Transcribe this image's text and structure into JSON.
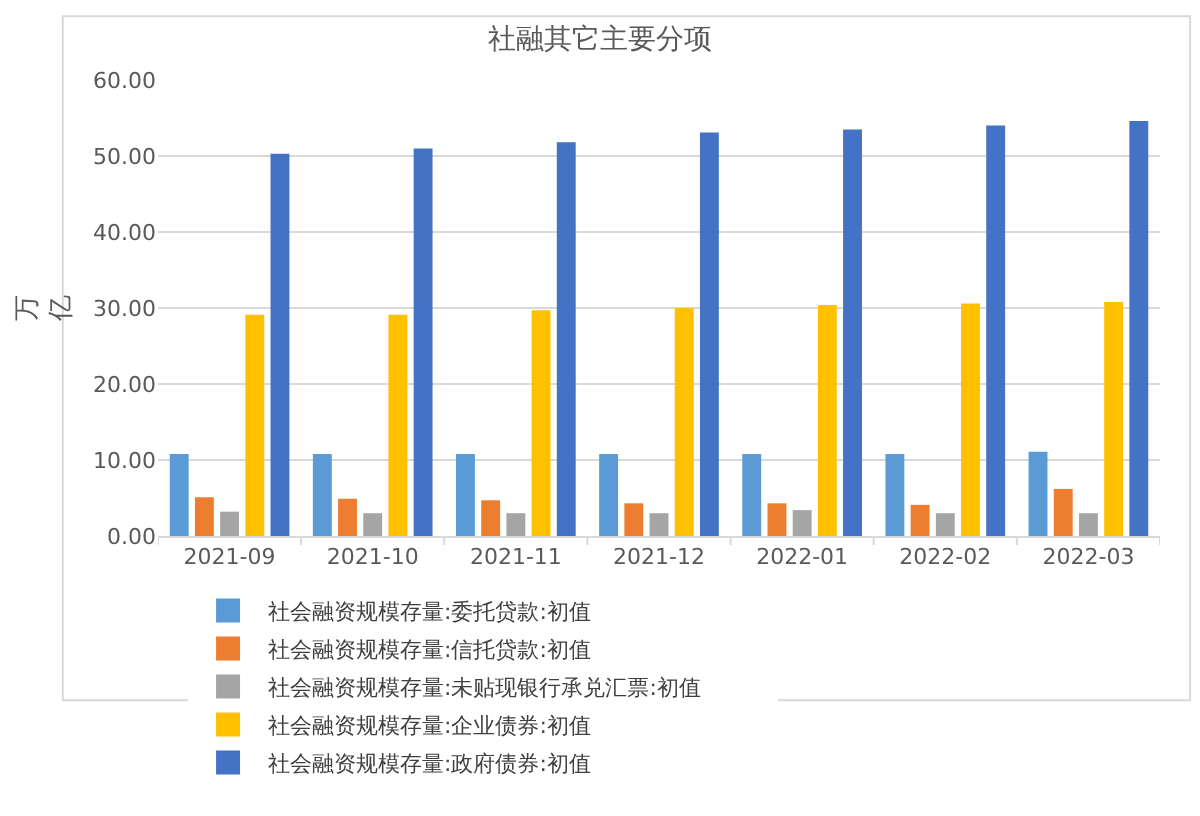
{
  "chart_data": {
    "type": "bar",
    "title": "社融其它主要分项",
    "ylabel": "万亿",
    "categories": [
      "2021-09",
      "2021-10",
      "2021-11",
      "2021-12",
      "2022-01",
      "2022-02",
      "2022-03"
    ],
    "series": [
      {
        "name": "社会融资规模存量:委托贷款:初值",
        "color": "#5b9bd5",
        "values": [
          10.8,
          10.8,
          10.8,
          10.8,
          10.8,
          10.8,
          11.1
        ]
      },
      {
        "name": "社会融资规模存量:信托贷款:初值",
        "color": "#ed7d31",
        "values": [
          5.1,
          4.9,
          4.7,
          4.3,
          4.3,
          4.1,
          6.2
        ]
      },
      {
        "name": "社会融资规模存量:未贴现银行承兑汇票:初值",
        "color": "#a5a5a5",
        "values": [
          3.2,
          3.0,
          3.0,
          3.0,
          3.4,
          3.0,
          3.0
        ]
      },
      {
        "name": "社会融资规模存量:企业债券:初值",
        "color": "#ffc000",
        "values": [
          29.1,
          29.1,
          29.7,
          30.0,
          30.4,
          30.6,
          30.8
        ]
      },
      {
        "name": "社会融资规模存量:政府债券:初值",
        "color": "#4472c4",
        "values": [
          50.3,
          51.0,
          51.8,
          53.1,
          53.5,
          54.0,
          54.6
        ]
      }
    ],
    "ylim": [
      0,
      60
    ],
    "yticks": [
      {
        "value": 0,
        "label": "0.00"
      },
      {
        "value": 10,
        "label": "10.00"
      },
      {
        "value": 20,
        "label": "20.00"
      },
      {
        "value": 30,
        "label": "30.00"
      },
      {
        "value": 40,
        "label": "40.00"
      },
      {
        "value": 50,
        "label": "50.00"
      },
      {
        "value": 60,
        "label": "60.00"
      }
    ],
    "grid": "y",
    "legend": "bottom"
  }
}
